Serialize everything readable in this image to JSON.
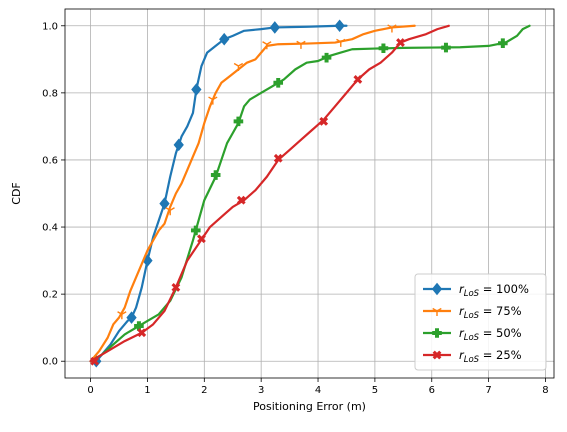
{
  "chart_data": {
    "type": "line",
    "title": "",
    "xlabel": "Positioning Error (m)",
    "ylabel": "CDF",
    "xlim": [
      -0.45,
      8.15
    ],
    "ylim": [
      -0.05,
      1.05
    ],
    "xticks": [
      "0",
      "1",
      "2",
      "3",
      "4",
      "5",
      "6",
      "7",
      "8"
    ],
    "yticks": [
      "0.0",
      "0.2",
      "0.4",
      "0.6",
      "0.8",
      "1.0"
    ],
    "grid": true,
    "legend_position": "bottom-right",
    "series": [
      {
        "name": "r_LoS = 100%",
        "legend": {
          "var": "r",
          "sub": "LoS",
          "value": " = 100%"
        },
        "color": "#1f77b4",
        "marker": "diamond",
        "points": [
          [
            0.05,
            0.0
          ],
          [
            0.1,
            0.0
          ],
          [
            0.2,
            0.02
          ],
          [
            0.35,
            0.05
          ],
          [
            0.5,
            0.09
          ],
          [
            0.65,
            0.12
          ],
          [
            0.72,
            0.13
          ],
          [
            0.8,
            0.16
          ],
          [
            0.9,
            0.22
          ],
          [
            1.0,
            0.3
          ],
          [
            1.1,
            0.37
          ],
          [
            1.2,
            0.42
          ],
          [
            1.3,
            0.47
          ],
          [
            1.4,
            0.55
          ],
          [
            1.5,
            0.62
          ],
          [
            1.6,
            0.67
          ],
          [
            1.7,
            0.7
          ],
          [
            1.8,
            0.74
          ],
          [
            1.86,
            0.81
          ],
          [
            1.95,
            0.88
          ],
          [
            2.05,
            0.92
          ],
          [
            2.2,
            0.94
          ],
          [
            2.35,
            0.96
          ],
          [
            2.5,
            0.97
          ],
          [
            2.7,
            0.985
          ],
          [
            3.0,
            0.99
          ],
          [
            3.24,
            0.995
          ],
          [
            3.8,
            0.997
          ],
          [
            4.38,
            1.0
          ],
          [
            4.5,
            1.0
          ]
        ],
        "markers": [
          [
            0.1,
            0.0
          ],
          [
            0.72,
            0.13
          ],
          [
            1.0,
            0.3
          ],
          [
            1.3,
            0.47
          ],
          [
            1.55,
            0.645
          ],
          [
            1.86,
            0.81
          ],
          [
            2.35,
            0.96
          ],
          [
            3.24,
            0.995
          ],
          [
            4.38,
            1.0
          ]
        ]
      },
      {
        "name": "r_LoS = 75%",
        "legend": {
          "var": "r",
          "sub": "LoS",
          "value": " = 75%"
        },
        "color": "#ff7f0e",
        "marker": "tri_down",
        "points": [
          [
            0.0,
            0.0
          ],
          [
            0.15,
            0.03
          ],
          [
            0.3,
            0.07
          ],
          [
            0.4,
            0.11
          ],
          [
            0.5,
            0.13
          ],
          [
            0.6,
            0.16
          ],
          [
            0.7,
            0.21
          ],
          [
            0.8,
            0.25
          ],
          [
            0.9,
            0.29
          ],
          [
            1.0,
            0.33
          ],
          [
            1.1,
            0.36
          ],
          [
            1.2,
            0.39
          ],
          [
            1.3,
            0.41
          ],
          [
            1.4,
            0.46
          ],
          [
            1.5,
            0.5
          ],
          [
            1.6,
            0.53
          ],
          [
            1.7,
            0.57
          ],
          [
            1.8,
            0.61
          ],
          [
            1.9,
            0.65
          ],
          [
            2.0,
            0.71
          ],
          [
            2.1,
            0.76
          ],
          [
            2.2,
            0.8
          ],
          [
            2.3,
            0.83
          ],
          [
            2.45,
            0.85
          ],
          [
            2.6,
            0.87
          ],
          [
            2.75,
            0.89
          ],
          [
            2.9,
            0.9
          ],
          [
            3.0,
            0.92
          ],
          [
            3.1,
            0.94
          ],
          [
            3.3,
            0.945
          ],
          [
            3.8,
            0.947
          ],
          [
            4.3,
            0.95
          ],
          [
            4.6,
            0.96
          ],
          [
            4.8,
            0.975
          ],
          [
            5.0,
            0.985
          ],
          [
            5.3,
            0.995
          ],
          [
            5.7,
            1.0
          ]
        ],
        "markers": [
          [
            0.55,
            0.14
          ],
          [
            1.4,
            0.45
          ],
          [
            2.15,
            0.78
          ],
          [
            2.6,
            0.88
          ],
          [
            3.1,
            0.945
          ],
          [
            3.7,
            0.946
          ],
          [
            4.4,
            0.952
          ],
          [
            5.3,
            0.995
          ]
        ]
      },
      {
        "name": "r_LoS = 50%",
        "legend": {
          "var": "r",
          "sub": "LoS",
          "value": " = 50%"
        },
        "color": "#2ca02c",
        "marker": "plus",
        "points": [
          [
            0.0,
            0.0
          ],
          [
            0.2,
            0.02
          ],
          [
            0.4,
            0.05
          ],
          [
            0.6,
            0.08
          ],
          [
            0.85,
            0.105
          ],
          [
            1.0,
            0.12
          ],
          [
            1.2,
            0.14
          ],
          [
            1.4,
            0.18
          ],
          [
            1.6,
            0.25
          ],
          [
            1.8,
            0.36
          ],
          [
            1.9,
            0.42
          ],
          [
            2.0,
            0.48
          ],
          [
            2.2,
            0.55
          ],
          [
            2.3,
            0.6
          ],
          [
            2.4,
            0.65
          ],
          [
            2.5,
            0.68
          ],
          [
            2.6,
            0.71
          ],
          [
            2.7,
            0.76
          ],
          [
            2.8,
            0.78
          ],
          [
            3.0,
            0.8
          ],
          [
            3.2,
            0.82
          ],
          [
            3.4,
            0.84
          ],
          [
            3.6,
            0.87
          ],
          [
            3.8,
            0.89
          ],
          [
            4.0,
            0.895
          ],
          [
            4.2,
            0.91
          ],
          [
            4.4,
            0.92
          ],
          [
            4.6,
            0.93
          ],
          [
            5.0,
            0.932
          ],
          [
            5.5,
            0.934
          ],
          [
            6.0,
            0.935
          ],
          [
            6.5,
            0.936
          ],
          [
            7.0,
            0.94
          ],
          [
            7.3,
            0.95
          ],
          [
            7.5,
            0.97
          ],
          [
            7.6,
            0.99
          ],
          [
            7.72,
            1.0
          ]
        ],
        "markers": [
          [
            0.85,
            0.105
          ],
          [
            1.85,
            0.39
          ],
          [
            2.2,
            0.555
          ],
          [
            2.6,
            0.715
          ],
          [
            3.3,
            0.83
          ],
          [
            4.15,
            0.905
          ],
          [
            5.15,
            0.933
          ],
          [
            6.25,
            0.935
          ],
          [
            7.25,
            0.948
          ]
        ]
      },
      {
        "name": "r_LoS = 25%",
        "legend": {
          "var": "r",
          "sub": "LoS",
          "value": " = 25%"
        },
        "color": "#d62728",
        "marker": "x_filled",
        "points": [
          [
            0.0,
            0.0
          ],
          [
            0.2,
            0.02
          ],
          [
            0.4,
            0.04
          ],
          [
            0.6,
            0.06
          ],
          [
            0.9,
            0.085
          ],
          [
            1.1,
            0.11
          ],
          [
            1.3,
            0.15
          ],
          [
            1.5,
            0.22
          ],
          [
            1.7,
            0.3
          ],
          [
            1.9,
            0.35
          ],
          [
            2.1,
            0.4
          ],
          [
            2.3,
            0.43
          ],
          [
            2.5,
            0.46
          ],
          [
            2.7,
            0.48
          ],
          [
            2.9,
            0.51
          ],
          [
            3.1,
            0.55
          ],
          [
            3.3,
            0.6
          ],
          [
            3.5,
            0.63
          ],
          [
            3.7,
            0.66
          ],
          [
            3.9,
            0.69
          ],
          [
            4.1,
            0.72
          ],
          [
            4.3,
            0.76
          ],
          [
            4.5,
            0.8
          ],
          [
            4.7,
            0.84
          ],
          [
            4.9,
            0.87
          ],
          [
            5.1,
            0.89
          ],
          [
            5.3,
            0.92
          ],
          [
            5.45,
            0.95
          ],
          [
            5.6,
            0.96
          ],
          [
            5.9,
            0.975
          ],
          [
            6.1,
            0.99
          ],
          [
            6.3,
            1.0
          ]
        ],
        "markers": [
          [
            0.07,
            0.0
          ],
          [
            0.9,
            0.085
          ],
          [
            1.5,
            0.22
          ],
          [
            1.95,
            0.365
          ],
          [
            2.65,
            0.48
          ],
          [
            3.3,
            0.605
          ],
          [
            4.1,
            0.715
          ],
          [
            4.7,
            0.84
          ],
          [
            5.45,
            0.95
          ]
        ]
      }
    ]
  }
}
